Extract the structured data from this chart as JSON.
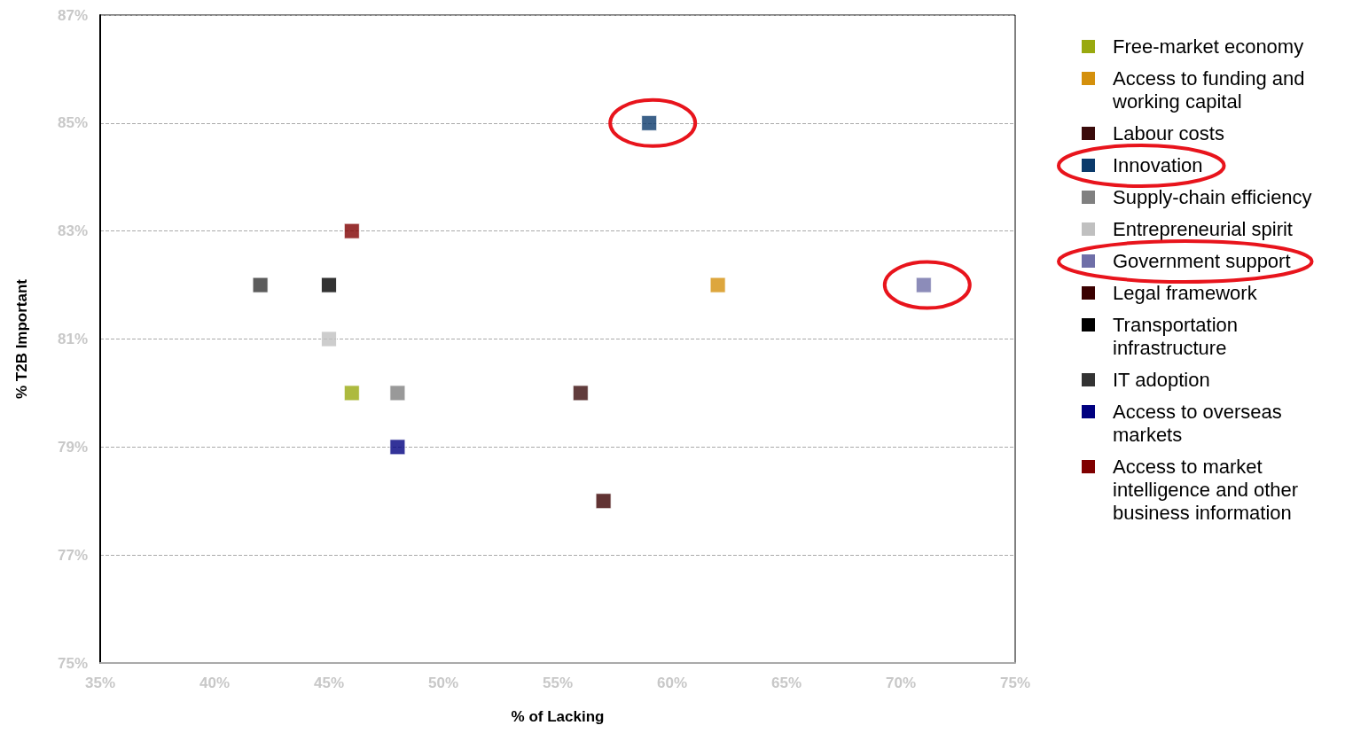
{
  "chart_data": {
    "type": "scatter",
    "xlabel": "% of Lacking",
    "ylabel": "% T2B Important",
    "xlim": [
      35,
      75
    ],
    "xticks": [
      {
        "value": 35,
        "label": "35%"
      },
      {
        "value": 40,
        "label": "40%"
      },
      {
        "value": 45,
        "label": "45%"
      },
      {
        "value": 50,
        "label": "50%"
      },
      {
        "value": 55,
        "label": "55%"
      },
      {
        "value": 60,
        "label": "60%"
      },
      {
        "value": 65,
        "label": "65%"
      },
      {
        "value": 70,
        "label": "70%"
      },
      {
        "value": 75,
        "label": "75%"
      }
    ],
    "ylim": [
      75,
      87
    ],
    "yticks": [
      {
        "value": 75,
        "label": "75%"
      },
      {
        "value": 77,
        "label": "77%"
      },
      {
        "value": 79,
        "label": "79%"
      },
      {
        "value": 81,
        "label": "81%"
      },
      {
        "value": 83,
        "label": "83%"
      },
      {
        "value": 85,
        "label": "85%"
      },
      {
        "value": 87,
        "label": "87%"
      }
    ],
    "grid": "y",
    "legend": "right",
    "marker": "square",
    "series": [
      {
        "name": "Free-market economy",
        "color": "#99a90f",
        "x": [
          46
        ],
        "values": [
          80
        ]
      },
      {
        "name": "Access to funding and working capital",
        "color": "#d4900c",
        "x": [
          62
        ],
        "values": [
          82
        ]
      },
      {
        "name": "Labour costs",
        "color": "#3a0b0b",
        "x": [
          56
        ],
        "values": [
          80
        ]
      },
      {
        "name": "Innovation",
        "color": "#0b3a6b",
        "x": [
          59
        ],
        "values": [
          85
        ]
      },
      {
        "name": "Supply-chain efficiency",
        "color": "#808080",
        "x": [
          48
        ],
        "values": [
          80
        ]
      },
      {
        "name": "Entrepreneurial spirit",
        "color": "#c0c0c0",
        "x": [
          45
        ],
        "values": [
          81
        ]
      },
      {
        "name": "Government support",
        "color": "#6f6fa8",
        "x": [
          71
        ],
        "values": [
          82
        ]
      },
      {
        "name": "Legal framework",
        "color": "#3a0000",
        "x": [
          57
        ],
        "values": [
          78
        ]
      },
      {
        "name": "Transportation infrastructure",
        "color": "#000000",
        "x": [
          45
        ],
        "values": [
          82
        ]
      },
      {
        "name": "IT adoption",
        "color": "#333333",
        "x": [
          42
        ],
        "values": [
          82
        ]
      },
      {
        "name": "Access to overseas markets",
        "color": "#000080",
        "x": [
          48
        ],
        "values": [
          79
        ]
      },
      {
        "name": "Access to market intelligence and other business information",
        "color": "#800000",
        "x": [
          46
        ],
        "values": [
          83
        ]
      }
    ]
  }
}
